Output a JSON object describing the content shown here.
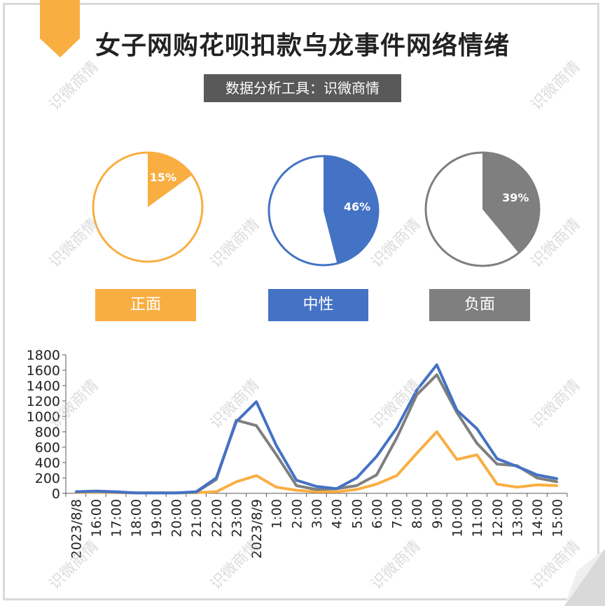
{
  "title": "女子网购花呗扣款乌龙事件网络情绪",
  "subtitle": "数据分析工具：识微商情",
  "watermark_text": "识微商情",
  "sentiment_pies": [
    {
      "label": "正面",
      "percent_text": "15%",
      "value": 15,
      "color": "#F9AE42"
    },
    {
      "label": "中性",
      "percent_text": "46%",
      "value": 46,
      "color": "#4472C4"
    },
    {
      "label": "负面",
      "percent_text": "39%",
      "value": 39,
      "color": "#7F7F7F"
    }
  ],
  "chart_data": {
    "type": "line",
    "categories": [
      "2023/8/8",
      "16:00",
      "17:00",
      "18:00",
      "19:00",
      "20:00",
      "21:00",
      "22:00",
      "23:00",
      "2023/8/9",
      "1:00",
      "2:00",
      "3:00",
      "4:00",
      "5:00",
      "6:00",
      "7:00",
      "8:00",
      "9:00",
      "10:00",
      "11:00",
      "12:00",
      "13:00",
      "14:00",
      "15:00"
    ],
    "ylim": [
      0,
      1800
    ],
    "yticks": [
      0,
      200,
      400,
      600,
      800,
      1000,
      1200,
      1400,
      1600,
      1800
    ],
    "series": [
      {
        "key": "positive",
        "color": "#F9AE42",
        "values": [
          10,
          15,
          10,
          5,
          5,
          5,
          10,
          20,
          150,
          230,
          80,
          40,
          20,
          20,
          50,
          120,
          230,
          520,
          800,
          440,
          500,
          120,
          80,
          110,
          100
        ]
      },
      {
        "key": "negative",
        "color": "#7F7F7F",
        "values": [
          20,
          25,
          15,
          5,
          5,
          5,
          15,
          180,
          950,
          880,
          500,
          100,
          50,
          60,
          100,
          240,
          720,
          1280,
          1540,
          1050,
          650,
          380,
          360,
          200,
          150
        ]
      },
      {
        "key": "neutral",
        "color": "#4472C4",
        "values": [
          20,
          30,
          20,
          5,
          5,
          5,
          20,
          200,
          930,
          1190,
          620,
          170,
          90,
          60,
          200,
          480,
          850,
          1340,
          1670,
          1080,
          840,
          450,
          350,
          240,
          190
        ]
      }
    ]
  }
}
